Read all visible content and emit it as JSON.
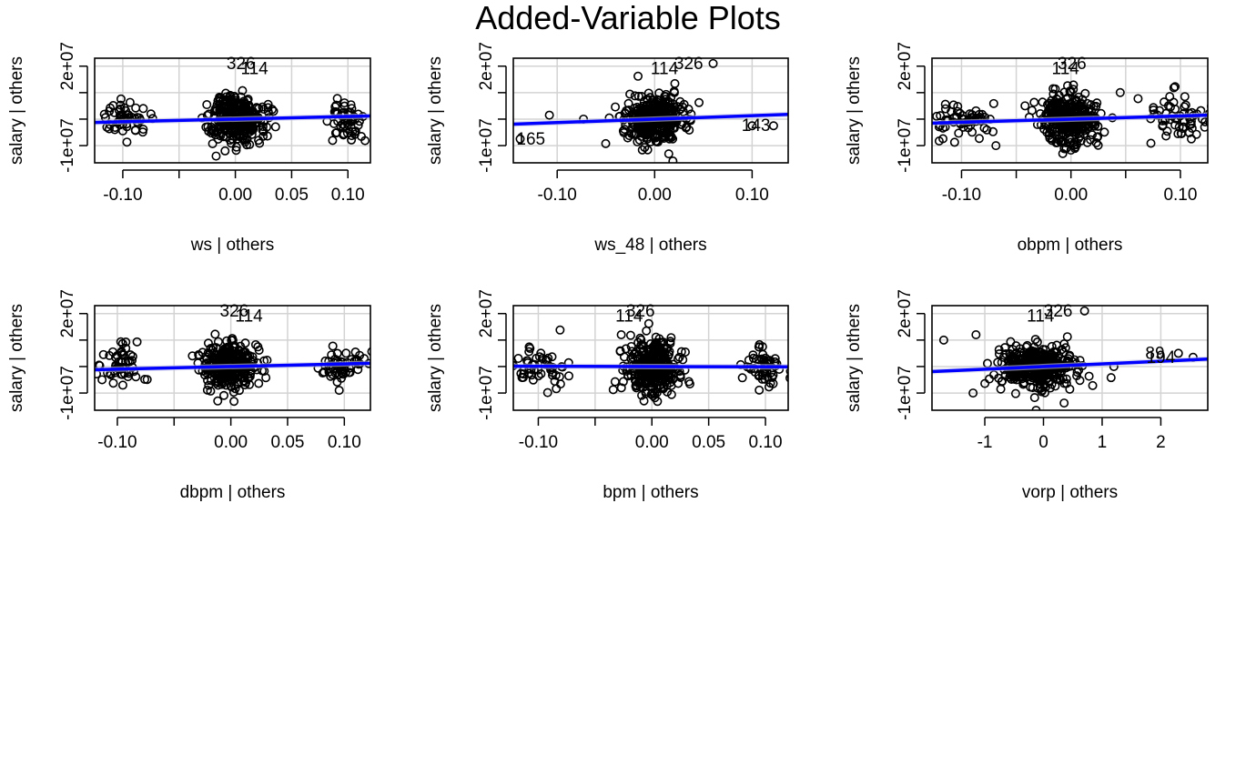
{
  "figure": {
    "title": "Added-Variable Plots"
  },
  "style": {
    "point_color": "#000000",
    "fit_color": "#0000ff",
    "grid_color": "#d3d3d3",
    "band_color": "#c8c8e6"
  },
  "chart_data": [
    {
      "type": "scatter",
      "xlabel": "ws | others",
      "ylabel": "salary  | others",
      "xlim": [
        -0.125,
        0.12
      ],
      "ylim": [
        -16500000.0,
        23000000.0
      ],
      "xticks": [
        -0.1,
        -0.05,
        0.0,
        0.05,
        0.1
      ],
      "xtick_labels": [
        "-0.10",
        "",
        "0.00",
        "0.05",
        "0.10"
      ],
      "yticks": [
        -10000000.0,
        0,
        10000000.0,
        20000000.0
      ],
      "ytick_labels": [
        "-1e+07",
        "",
        "",
        "2e+07"
      ],
      "grid": true,
      "clusters": [
        {
          "center": -0.099,
          "spread_x": 0.011,
          "count": 55,
          "spread_y": 4500000.0
        },
        {
          "center": 0.0,
          "spread_x": 0.012,
          "count": 320,
          "spread_y": 6000000.0
        },
        {
          "center": 0.098,
          "spread_x": 0.01,
          "count": 55,
          "spread_y": 4500000.0
        }
      ],
      "fit": {
        "slope": 10000000.0,
        "intercept": 0
      },
      "labels": [
        {
          "text": "326",
          "x": 0.005,
          "y": 21000000.0
        },
        {
          "text": "114",
          "x": 0.017,
          "y": 19000000.0
        }
      ]
    },
    {
      "type": "scatter",
      "xlabel": "ws_48 | others",
      "ylabel": "salary  | others",
      "xlim": [
        -0.145,
        0.137
      ],
      "ylim": [
        -16500000.0,
        23000000.0
      ],
      "xticks": [
        -0.1,
        0.0,
        0.1
      ],
      "xtick_labels": [
        "-0.10",
        "0.00",
        "0.10"
      ],
      "yticks": [
        -10000000.0,
        0,
        10000000.0,
        20000000.0
      ],
      "ytick_labels": [
        "-1e+07",
        "",
        "",
        "2e+07"
      ],
      "grid": true,
      "clusters": [
        {
          "center": 0.0,
          "spread_x": 0.015,
          "count": 380,
          "spread_y": 5500000.0
        }
      ],
      "extra_points": [
        {
          "x": -0.138,
          "y": -7500000.0
        },
        {
          "x": -0.108,
          "y": 1500000.0
        },
        {
          "x": -0.073,
          "y": 0
        },
        {
          "x": 0.06,
          "y": 21000000.0
        },
        {
          "x": 0.1,
          "y": -2500000.0
        },
        {
          "x": 0.122,
          "y": -2500000.0
        }
      ],
      "fit": {
        "slope": 13000000.0,
        "intercept": 0
      },
      "labels": [
        {
          "text": "114",
          "x": 0.01,
          "y": 19000000.0
        },
        {
          "text": "326",
          "x": 0.035,
          "y": 21000000.0
        },
        {
          "text": "165",
          "x": -0.127,
          "y": -7500000.0
        },
        {
          "text": "143",
          "x": 0.104,
          "y": -2500000.0
        }
      ]
    },
    {
      "type": "scatter",
      "xlabel": "obpm | others",
      "ylabel": "salary  | others",
      "xlim": [
        -0.127,
        0.125
      ],
      "ylim": [
        -16500000.0,
        23000000.0
      ],
      "xticks": [
        -0.1,
        -0.05,
        0.0,
        0.05,
        0.1
      ],
      "xtick_labels": [
        "-0.10",
        "",
        "0.00",
        "",
        "0.10"
      ],
      "yticks": [
        -10000000.0,
        0,
        10000000.0,
        20000000.0
      ],
      "ytick_labels": [
        "-1e+07",
        "",
        "",
        "2e+07"
      ],
      "grid": true,
      "clusters": [
        {
          "center": -0.097,
          "spread_x": 0.014,
          "count": 60,
          "spread_y": 5000000.0
        },
        {
          "center": 0.0,
          "spread_x": 0.013,
          "count": 320,
          "spread_y": 6000000.0
        },
        {
          "center": 0.097,
          "spread_x": 0.014,
          "count": 60,
          "spread_y": 5000000.0
        }
      ],
      "fit": {
        "slope": 12000000.0,
        "intercept": 0
      },
      "labels": [
        {
          "text": "114",
          "x": -0.005,
          "y": 19000000.0
        },
        {
          "text": "326",
          "x": 0.001,
          "y": 21000000.0
        }
      ]
    },
    {
      "type": "scatter",
      "xlabel": "dbpm | others",
      "ylabel": "salary  | others",
      "xlim": [
        -0.12,
        0.123
      ],
      "ylim": [
        -16500000.0,
        23000000.0
      ],
      "xticks": [
        -0.1,
        -0.05,
        0.0,
        0.05,
        0.1
      ],
      "xtick_labels": [
        "-0.10",
        "",
        "0.00",
        "0.05",
        "0.10"
      ],
      "yticks": [
        -10000000.0,
        0,
        10000000.0,
        20000000.0
      ],
      "ytick_labels": [
        "-1e+07",
        "",
        "",
        "2e+07"
      ],
      "grid": true,
      "clusters": [
        {
          "center": -0.097,
          "spread_x": 0.009,
          "count": 55,
          "spread_y": 4500000.0
        },
        {
          "center": 0.0,
          "spread_x": 0.012,
          "count": 320,
          "spread_y": 6000000.0
        },
        {
          "center": 0.099,
          "spread_x": 0.01,
          "count": 55,
          "spread_y": 4500000.0
        }
      ],
      "fit": {
        "slope": 10000000.0,
        "intercept": 0
      },
      "labels": [
        {
          "text": "326",
          "x": 0.003,
          "y": 21000000.0
        },
        {
          "text": "114",
          "x": 0.016,
          "y": 19000000.0
        }
      ]
    },
    {
      "type": "scatter",
      "xlabel": "bpm | others",
      "ylabel": "salary  | others",
      "xlim": [
        -0.122,
        0.12
      ],
      "ylim": [
        -16500000.0,
        23000000.0
      ],
      "xticks": [
        -0.1,
        -0.05,
        0.0,
        0.05,
        0.1
      ],
      "xtick_labels": [
        "-0.10",
        "",
        "0.00",
        "0.05",
        "0.10"
      ],
      "yticks": [
        -10000000.0,
        0,
        10000000.0,
        20000000.0
      ],
      "ytick_labels": [
        "-1e+07",
        "",
        "",
        "2e+07"
      ],
      "grid": true,
      "clusters": [
        {
          "center": -0.098,
          "spread_x": 0.013,
          "count": 55,
          "spread_y": 5000000.0
        },
        {
          "center": 0.0,
          "spread_x": 0.012,
          "count": 340,
          "spread_y": 6000000.0
        },
        {
          "center": 0.098,
          "spread_x": 0.01,
          "count": 55,
          "spread_y": 4500000.0
        }
      ],
      "fit": {
        "slope": -1000000.0,
        "intercept": 0
      },
      "labels": [
        {
          "text": "326",
          "x": -0.01,
          "y": 21000000.0
        },
        {
          "text": "114",
          "x": -0.02,
          "y": 19000000.0
        }
      ]
    },
    {
      "type": "scatter",
      "xlabel": "vorp | others",
      "ylabel": "salary  | others",
      "xlim": [
        -1.9,
        2.8
      ],
      "ylim": [
        -16500000.0,
        23000000.0
      ],
      "xticks": [
        -1,
        0,
        1,
        2
      ],
      "xtick_labels": [
        "-1",
        "0",
        "1",
        "2"
      ],
      "yticks": [
        -10000000.0,
        0,
        10000000.0,
        20000000.0
      ],
      "ytick_labels": [
        "-1e+07",
        "",
        "",
        "2e+07"
      ],
      "grid": true,
      "clusters": [
        {
          "center": -0.1,
          "spread_x": 0.35,
          "count": 380,
          "spread_y": 5000000.0
        }
      ],
      "extra_points": [
        {
          "x": -1.7,
          "y": 10000000.0
        },
        {
          "x": -1.2,
          "y": -10000000.0
        },
        {
          "x": -1.15,
          "y": 12000000.0
        },
        {
          "x": 1.2,
          "y": 0
        },
        {
          "x": 2.3,
          "y": 5000000.0
        },
        {
          "x": 2.55,
          "y": 3500000.0
        },
        {
          "x": 0.7,
          "y": 21000000.0
        }
      ],
      "fit": {
        "slope": 1000000.0,
        "intercept": 0
      },
      "labels": [
        {
          "text": "114",
          "x": -0.05,
          "y": 19000000.0
        },
        {
          "text": "326",
          "x": 0.25,
          "y": 21000000.0
        },
        {
          "text": "89",
          "x": 1.9,
          "y": 5000000.0
        },
        {
          "text": "194",
          "x": 2.0,
          "y": 3500000.0
        }
      ]
    }
  ]
}
